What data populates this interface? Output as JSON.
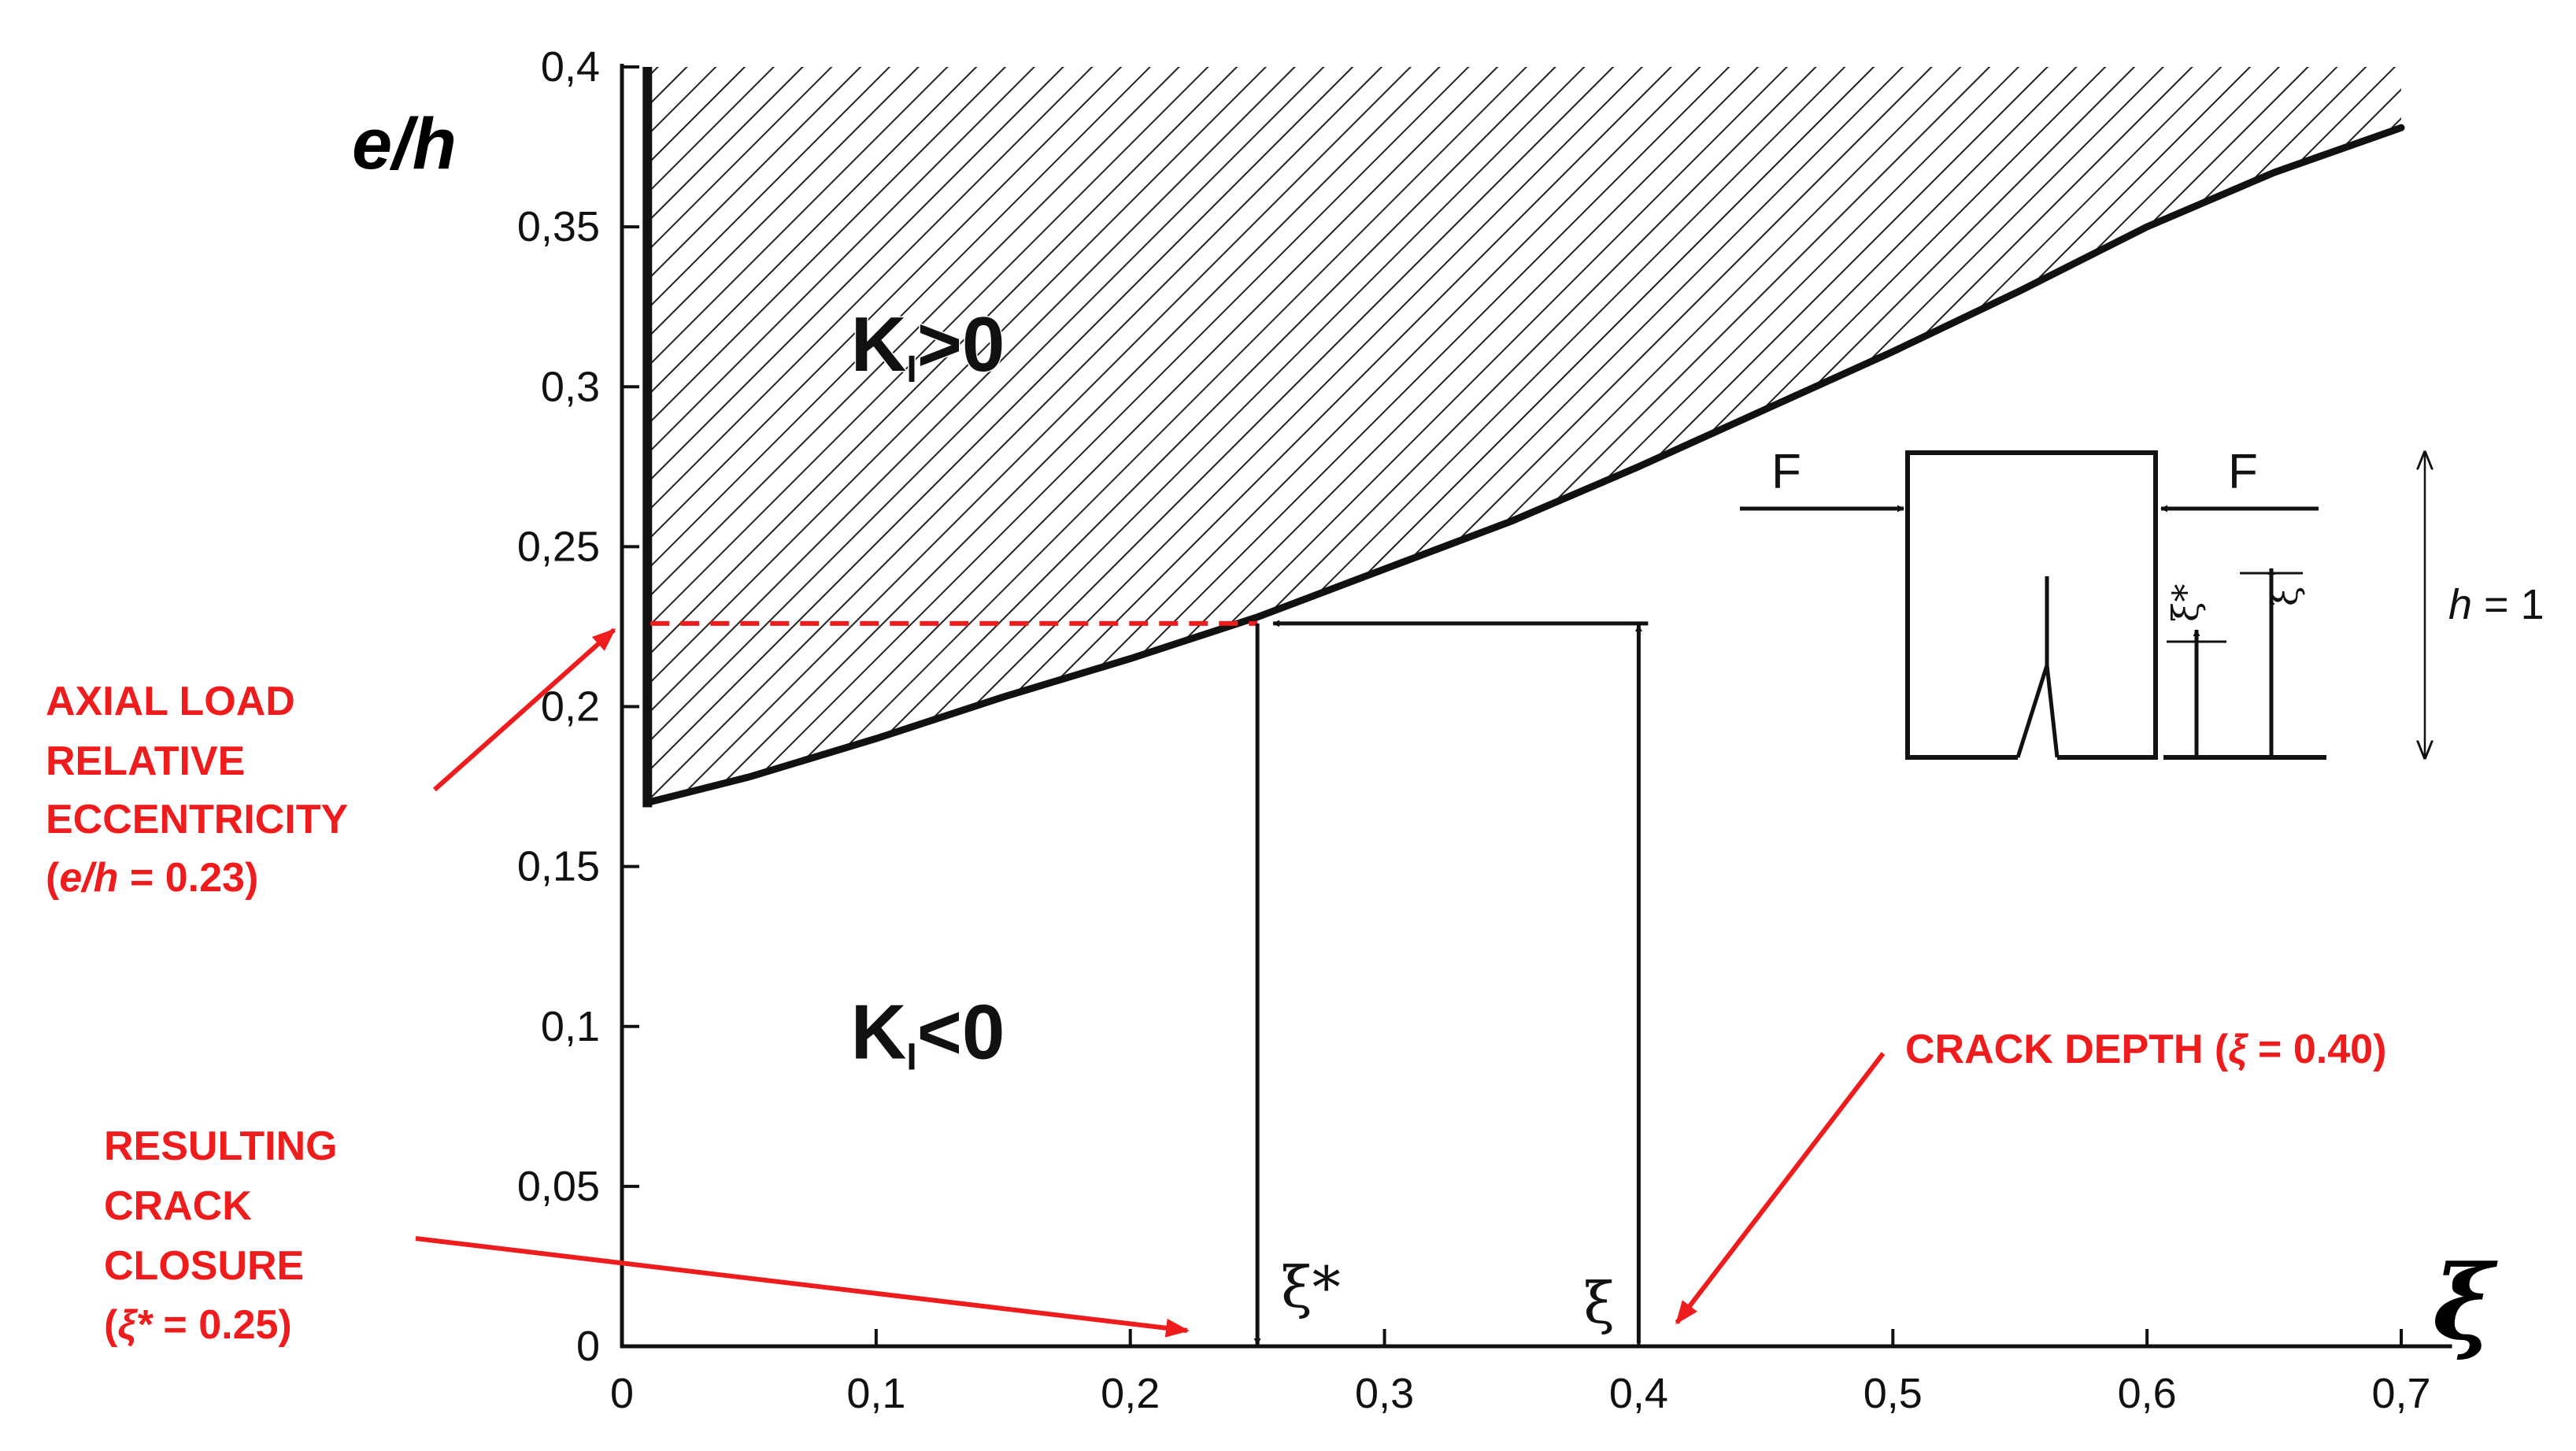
{
  "chart_data": {
    "type": "area",
    "x_axis": {
      "label": "ξ",
      "range": [
        0,
        0.7
      ],
      "ticks": [
        0,
        0.1,
        0.2,
        0.3,
        0.4,
        0.5,
        0.6,
        0.7
      ],
      "tick_labels": [
        "0",
        "0,1",
        "0,2",
        "0,3",
        "0,4",
        "0,5",
        "0,6",
        "0,7"
      ]
    },
    "y_axis": {
      "label": "e/h",
      "range": [
        0,
        0.4
      ],
      "ticks": [
        0,
        0.05,
        0.1,
        0.15,
        0.2,
        0.25,
        0.3,
        0.35,
        0.4
      ],
      "tick_labels": [
        "0",
        "0,05",
        "0,1",
        "0,15",
        "0,2",
        "0,25",
        "0,3",
        "0,35",
        "0,4"
      ]
    },
    "grid": false,
    "legend": "none",
    "boundary_curve": {
      "x": [
        0.01,
        0.05,
        0.1,
        0.15,
        0.2,
        0.25,
        0.3,
        0.35,
        0.4,
        0.45,
        0.5,
        0.55,
        0.6,
        0.65,
        0.7
      ],
      "y": [
        0.17,
        0.178,
        0.19,
        0.203,
        0.215,
        0.228,
        0.243,
        0.258,
        0.275,
        0.293,
        0.311,
        0.33,
        0.35,
        0.367,
        0.381
      ]
    },
    "regions": [
      {
        "label_main": "K",
        "label_sub": "I",
        "label_rel": ">0",
        "x": 0.09,
        "y": 0.305,
        "hatched": true
      },
      {
        "label_main": "K",
        "label_sub": "I",
        "label_rel": "<0",
        "x": 0.09,
        "y": 0.09,
        "hatched": false
      }
    ],
    "construction": {
      "crack_depth": 0.4,
      "crack_closure": 0.25,
      "eccentricity": 0.226,
      "xi_label": "ξ",
      "xi_star_label": "ξ*"
    },
    "annotations": [
      {
        "id": "eccentricity",
        "lines": [
          "AXIAL LOAD",
          "RELATIVE",
          "ECCENTRICITY"
        ],
        "value_line": {
          "prefix": "(",
          "var": "e/h",
          "suffix": " = 0.23)"
        }
      },
      {
        "id": "closure",
        "lines": [
          "RESULTING",
          "CRACK",
          "CLOSURE"
        ],
        "value_line": {
          "prefix": "(",
          "var": "ξ*",
          "suffix": " = 0.25)"
        }
      },
      {
        "id": "depth",
        "lines": [],
        "value_line": {
          "prefix": "CRACK DEPTH (",
          "var": "ξ",
          "suffix": " = 0.40)"
        }
      }
    ],
    "colors": {
      "annotation": "#ee1c1c",
      "ink": "#111111",
      "background": "#ffffff"
    }
  },
  "inset": {
    "force_left": "F",
    "force_right": "F",
    "xi_star_label": "ξ*",
    "xi_label": "ξ",
    "height_var": "h",
    "height_value": " = 1"
  }
}
